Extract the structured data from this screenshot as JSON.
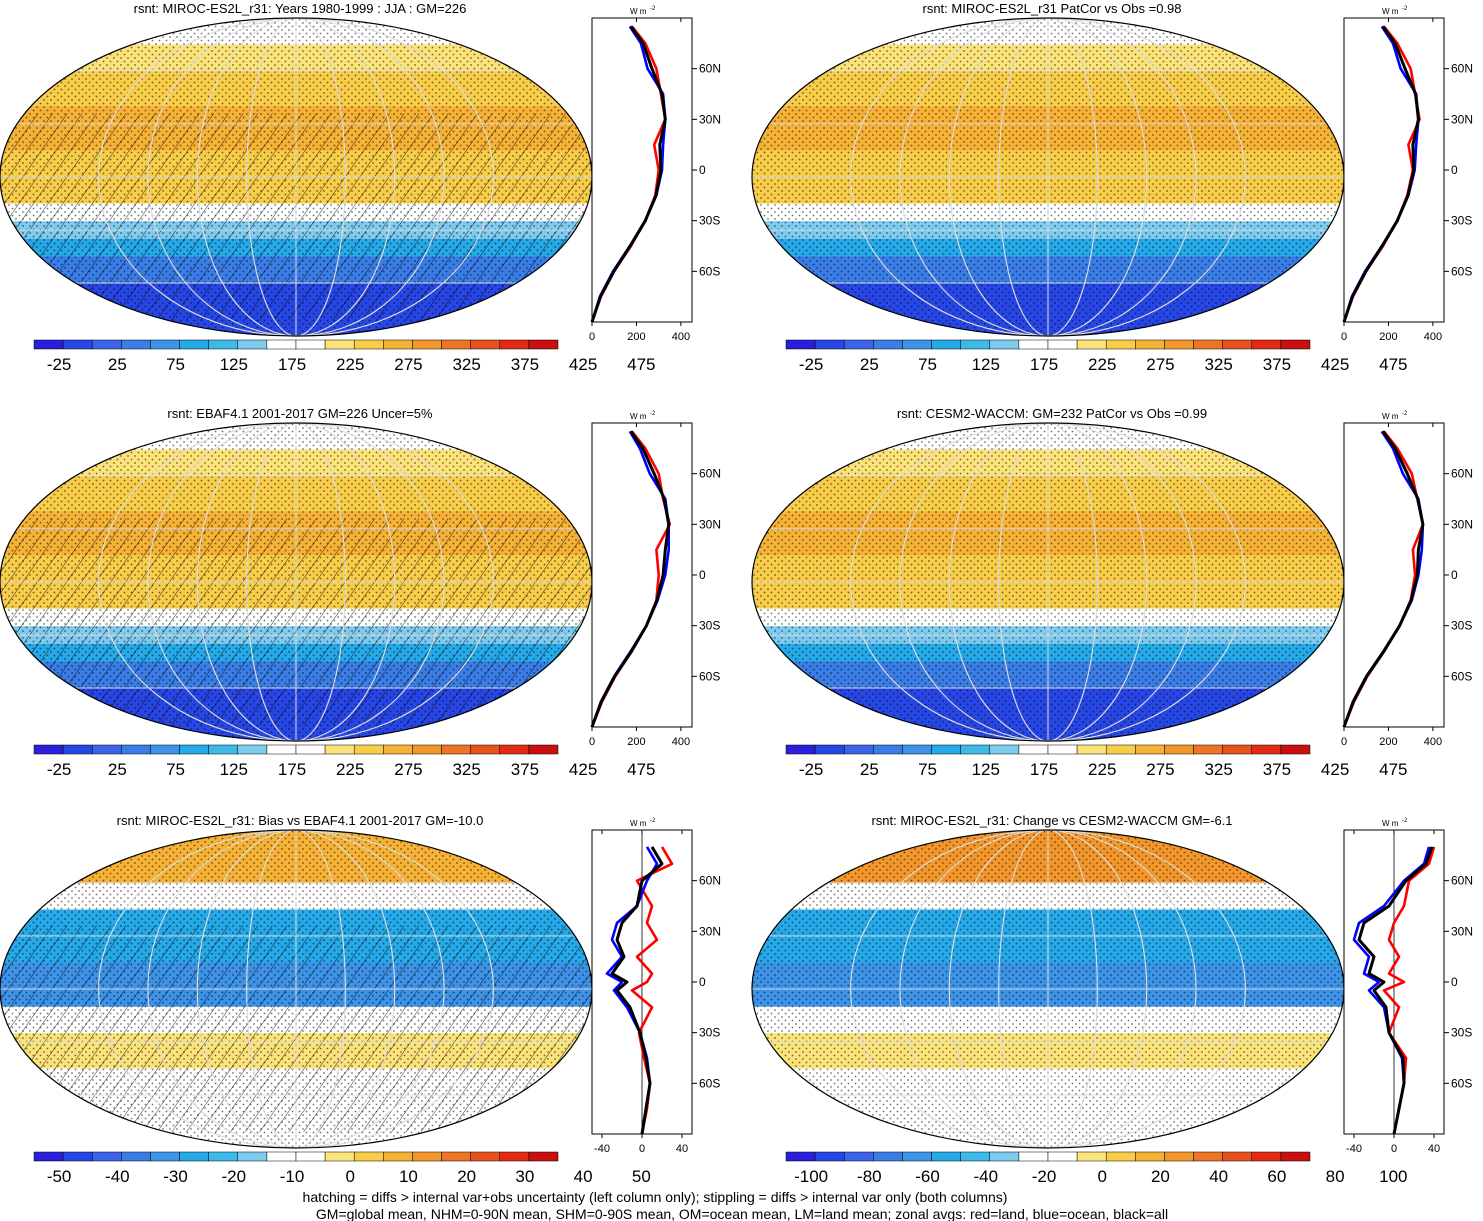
{
  "figure": {
    "footnote_line1": "hatching = diffs > internal var+obs uncertainty (left column only); stippling = diffs > internal var only (both columns)",
    "footnote_line2": "GM=global mean, NHM=0-90N mean, SHM=0-90S mean, OM=ocean mean, LM=land mean; zonal avgs: red=land, blue=ocean, black=all"
  },
  "colors": {
    "abs_scale": [
      "#2a1fd9",
      "#2746e6",
      "#3b64e8",
      "#3a7de6",
      "#3d93e8",
      "#25a9e8",
      "#3dbae8",
      "#7ecbf0",
      "#ffffff",
      "#ffffff",
      "#fbe37a",
      "#f8cd4a",
      "#f6b236",
      "#f3972c",
      "#ee7523",
      "#e8531c",
      "#e32b14",
      "#c90f0f"
    ],
    "diff50_scale": [
      "#2a1fd9",
      "#2746e6",
      "#3b64e8",
      "#3a7de6",
      "#3d93e8",
      "#25a9e8",
      "#3dbae8",
      "#7ecbf0",
      "#ffffff",
      "#ffffff",
      "#fbe37a",
      "#f8cd4a",
      "#f6b236",
      "#f3972c",
      "#ee7523",
      "#e8531c",
      "#e32b14",
      "#c90f0f"
    ],
    "diff100_scale": [
      "#2a1fd9",
      "#2746e6",
      "#3b64e8",
      "#3a7de6",
      "#3d93e8",
      "#25a9e8",
      "#3dbae8",
      "#7ecbf0",
      "#ffffff",
      "#ffffff",
      "#fbe37a",
      "#f8cd4a",
      "#f6b236",
      "#f3972c",
      "#ee7523",
      "#e8531c",
      "#e32b14",
      "#c90f0f"
    ],
    "land_line": "#ff0000",
    "ocean_line": "#0000ff",
    "all_line": "#000000"
  },
  "chart_data": [
    {
      "type": "heatmap",
      "title": "rsnt: MIROC-ES2L_r31: Years 1980-1999 : JJA : GM=226",
      "field": "absolute",
      "hatching": true,
      "colorbar_labels": [
        "-25",
        "25",
        "75",
        "125",
        "175",
        "225",
        "275",
        "325",
        "375",
        "425",
        "475"
      ],
      "zonal": {
        "unit": "W m-2",
        "xlim": [
          0,
          450
        ],
        "xticks": [
          "0",
          "200",
          "400"
        ],
        "ylim": [
          -90,
          90
        ],
        "yticks": [
          "60N",
          "30N",
          "0",
          "30S",
          "60S"
        ],
        "lat": [
          -90,
          -75,
          -60,
          -45,
          -30,
          -15,
          0,
          15,
          30,
          45,
          60,
          75,
          85
        ],
        "land": [
          0,
          40,
          100,
          175,
          240,
          285,
          300,
          280,
          330,
          310,
          290,
          240,
          180
        ],
        "ocean": [
          0,
          35,
          95,
          170,
          240,
          290,
          315,
          320,
          330,
          320,
          250,
          220,
          170
        ],
        "all": [
          0,
          38,
          98,
          172,
          240,
          288,
          310,
          305,
          330,
          315,
          270,
          230,
          175
        ]
      }
    },
    {
      "type": "heatmap",
      "title": "rsnt: MIROC-ES2L_r31 PatCor vs Obs =0.98",
      "field": "absolute",
      "hatching": false,
      "colorbar_labels": [
        "-25",
        "25",
        "75",
        "125",
        "175",
        "225",
        "275",
        "325",
        "375",
        "425",
        "475"
      ],
      "zonal": {
        "unit": "W m-2",
        "xlim": [
          0,
          450
        ],
        "xticks": [
          "0",
          "200",
          "400"
        ],
        "ylim": [
          -90,
          90
        ],
        "yticks": [
          "60N",
          "30N",
          "0",
          "30S",
          "60S"
        ],
        "lat": [
          -90,
          -75,
          -60,
          -45,
          -30,
          -15,
          0,
          15,
          30,
          45,
          60,
          75,
          85
        ],
        "land": [
          0,
          40,
          100,
          175,
          240,
          285,
          310,
          290,
          340,
          320,
          300,
          240,
          180
        ],
        "ocean": [
          0,
          35,
          95,
          170,
          240,
          290,
          318,
          325,
          335,
          325,
          255,
          220,
          170
        ],
        "all": [
          0,
          38,
          98,
          172,
          240,
          288,
          314,
          310,
          335,
          322,
          275,
          230,
          175
        ]
      }
    },
    {
      "type": "heatmap",
      "title": "rsnt: EBAF4.1 2001-2017 GM=226 Uncer=5%",
      "field": "absolute",
      "hatching": true,
      "colorbar_labels": [
        "-25",
        "25",
        "75",
        "125",
        "175",
        "225",
        "275",
        "325",
        "375",
        "425",
        "475"
      ],
      "zonal": {
        "unit": "W m-2",
        "xlim": [
          0,
          450
        ],
        "xticks": [
          "0",
          "200",
          "400"
        ],
        "ylim": [
          -90,
          90
        ],
        "yticks": [
          "60N",
          "30N",
          "0",
          "30S",
          "60S"
        ],
        "lat": [
          -90,
          -75,
          -60,
          -45,
          -30,
          -15,
          0,
          15,
          30,
          45,
          60,
          75,
          85
        ],
        "land": [
          0,
          45,
          105,
          180,
          245,
          290,
          300,
          290,
          350,
          320,
          300,
          240,
          180
        ],
        "ocean": [
          0,
          40,
          100,
          175,
          245,
          295,
          330,
          345,
          345,
          330,
          260,
          215,
          170
        ],
        "all": [
          0,
          42,
          102,
          178,
          245,
          292,
          320,
          330,
          345,
          325,
          280,
          228,
          175
        ]
      }
    },
    {
      "type": "heatmap",
      "title": "rsnt: CESM2-WACCM: GM=232 PatCor vs Obs =0.99",
      "field": "absolute",
      "hatching": false,
      "colorbar_labels": [
        "-25",
        "25",
        "75",
        "125",
        "175",
        "225",
        "275",
        "325",
        "375",
        "425",
        "475"
      ],
      "zonal": {
        "unit": "W m-2",
        "xlim": [
          0,
          450
        ],
        "xticks": [
          "0",
          "200",
          "400"
        ],
        "ylim": [
          -90,
          90
        ],
        "yticks": [
          "60N",
          "30N",
          "0",
          "30S",
          "60S"
        ],
        "lat": [
          -90,
          -75,
          -60,
          -45,
          -30,
          -15,
          0,
          15,
          30,
          45,
          60,
          75,
          85
        ],
        "land": [
          0,
          45,
          105,
          182,
          250,
          300,
          320,
          310,
          355,
          330,
          305,
          240,
          180
        ],
        "ocean": [
          0,
          40,
          100,
          178,
          250,
          305,
          335,
          350,
          355,
          335,
          265,
          220,
          170
        ],
        "all": [
          0,
          42,
          102,
          180,
          250,
          302,
          330,
          335,
          355,
          332,
          285,
          230,
          175
        ]
      }
    },
    {
      "type": "heatmap",
      "title": "rsnt: MIROC-ES2L_r31: Bias vs EBAF4.1 2001-2017 GM=-10.0",
      "field": "diff50",
      "hatching": true,
      "colorbar_labels": [
        "-50",
        "-40",
        "-30",
        "-20",
        "-10",
        "0",
        "10",
        "20",
        "30",
        "40",
        "50"
      ],
      "zonal": {
        "unit": "W m-2",
        "xlim": [
          -50,
          50
        ],
        "xticks": [
          "-40",
          "0",
          "40"
        ],
        "ylim": [
          -90,
          90
        ],
        "yticks": [
          "60N",
          "30N",
          "0",
          "30S",
          "60S"
        ],
        "lat": [
          -90,
          -75,
          -60,
          -45,
          -30,
          -15,
          -5,
          0,
          5,
          15,
          25,
          35,
          45,
          60,
          70,
          80
        ],
        "land": [
          0,
          5,
          8,
          2,
          -3,
          10,
          -10,
          5,
          10,
          -5,
          15,
          5,
          10,
          -5,
          30,
          20
        ],
        "ocean": [
          0,
          4,
          8,
          5,
          -2,
          -15,
          -28,
          -20,
          -35,
          -20,
          -30,
          -25,
          -5,
          5,
          15,
          5
        ],
        "all": [
          0,
          4,
          8,
          4,
          -2,
          -12,
          -25,
          -15,
          -30,
          -18,
          -25,
          -20,
          -5,
          0,
          20,
          10
        ]
      }
    },
    {
      "type": "heatmap",
      "title": "rsnt: MIROC-ES2L_r31: Change vs CESM2-WACCM GM=-6.1",
      "field": "diff100",
      "hatching": false,
      "colorbar_labels": [
        "-100",
        "-80",
        "-60",
        "-40",
        "-20",
        "0",
        "20",
        "40",
        "60",
        "80",
        "100"
      ],
      "zonal": {
        "unit": "W m-2",
        "xlim": [
          -50,
          50
        ],
        "xticks": [
          "-40",
          "0",
          "40"
        ],
        "ylim": [
          -90,
          90
        ],
        "yticks": [
          "60N",
          "30N",
          "0",
          "30S",
          "60S"
        ],
        "lat": [
          -90,
          -75,
          -60,
          -45,
          -30,
          -15,
          -5,
          0,
          5,
          15,
          25,
          35,
          45,
          60,
          70,
          80
        ],
        "land": [
          0,
          5,
          10,
          12,
          -5,
          5,
          -10,
          10,
          -5,
          5,
          -5,
          0,
          10,
          15,
          35,
          40
        ],
        "ocean": [
          0,
          5,
          10,
          8,
          -5,
          -10,
          -25,
          -15,
          -30,
          -25,
          -40,
          -35,
          -10,
          10,
          30,
          35
        ],
        "all": [
          0,
          5,
          10,
          9,
          -5,
          -8,
          -20,
          -10,
          -25,
          -20,
          -35,
          -30,
          -5,
          12,
          32,
          38
        ]
      }
    }
  ]
}
